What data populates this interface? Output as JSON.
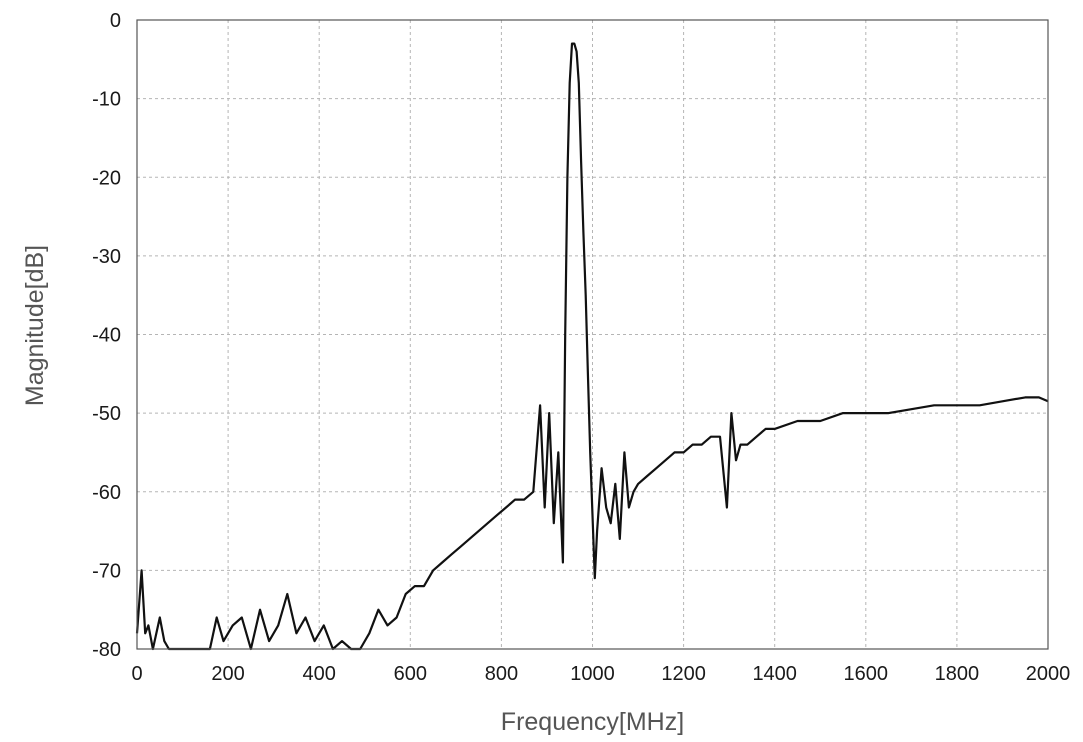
{
  "chart_data": {
    "type": "line",
    "title": "",
    "xlabel": "Frequency[MHz]",
    "ylabel": "Magnitude[dB]",
    "xlim": [
      0,
      2000
    ],
    "ylim": [
      -80,
      0
    ],
    "grid": true,
    "x_ticks": [
      0,
      200,
      400,
      600,
      800,
      1000,
      1200,
      1400,
      1600,
      1800,
      2000
    ],
    "y_ticks": [
      0,
      -10,
      -20,
      -30,
      -40,
      -50,
      -60,
      -70,
      -80
    ],
    "series": [
      {
        "color": "#111111",
        "x": [
          0,
          10,
          18,
          25,
          35,
          50,
          60,
          70,
          80,
          100,
          120,
          140,
          160,
          175,
          190,
          210,
          230,
          250,
          270,
          290,
          310,
          330,
          350,
          370,
          390,
          410,
          430,
          450,
          470,
          490,
          510,
          530,
          550,
          570,
          590,
          610,
          630,
          650,
          670,
          690,
          710,
          730,
          750,
          770,
          790,
          810,
          830,
          850,
          870,
          885,
          895,
          905,
          915,
          925,
          935,
          940,
          945,
          950,
          955,
          960,
          965,
          970,
          975,
          980,
          985,
          990,
          995,
          1000,
          1005,
          1010,
          1020,
          1030,
          1040,
          1050,
          1060,
          1070,
          1080,
          1090,
          1100,
          1120,
          1140,
          1160,
          1180,
          1200,
          1220,
          1240,
          1260,
          1280,
          1295,
          1305,
          1315,
          1325,
          1340,
          1360,
          1380,
          1400,
          1450,
          1500,
          1550,
          1600,
          1650,
          1700,
          1750,
          1800,
          1850,
          1900,
          1950,
          1980,
          2000
        ],
        "values": [
          -78,
          -70,
          -78,
          -77,
          -80,
          -76,
          -79,
          -80,
          -80,
          -80,
          -80,
          -80,
          -80,
          -76,
          -79,
          -77,
          -76,
          -80,
          -75,
          -79,
          -77,
          -73,
          -78,
          -76,
          -79,
          -77,
          -80,
          -79,
          -80,
          -80,
          -78,
          -75,
          -77,
          -76,
          -73,
          -72,
          -72,
          -70,
          -69,
          -68,
          -67,
          -66,
          -65,
          -64,
          -63,
          -62,
          -61,
          -61,
          -60,
          -49,
          -62,
          -50,
          -64,
          -55,
          -69,
          -40,
          -20,
          -8,
          -3,
          -3,
          -4,
          -8,
          -18,
          -27,
          -35,
          -45,
          -55,
          -63,
          -71,
          -65,
          -57,
          -62,
          -64,
          -59,
          -66,
          -55,
          -62,
          -60,
          -59,
          -58,
          -57,
          -56,
          -55,
          -55,
          -54,
          -54,
          -53,
          -53,
          -62,
          -50,
          -56,
          -54,
          -54,
          -53,
          -52,
          -52,
          -51,
          -51,
          -50,
          -50,
          -50,
          -49.5,
          -49,
          -49,
          -49,
          -48.5,
          -48,
          -48,
          -48.5
        ]
      }
    ]
  }
}
